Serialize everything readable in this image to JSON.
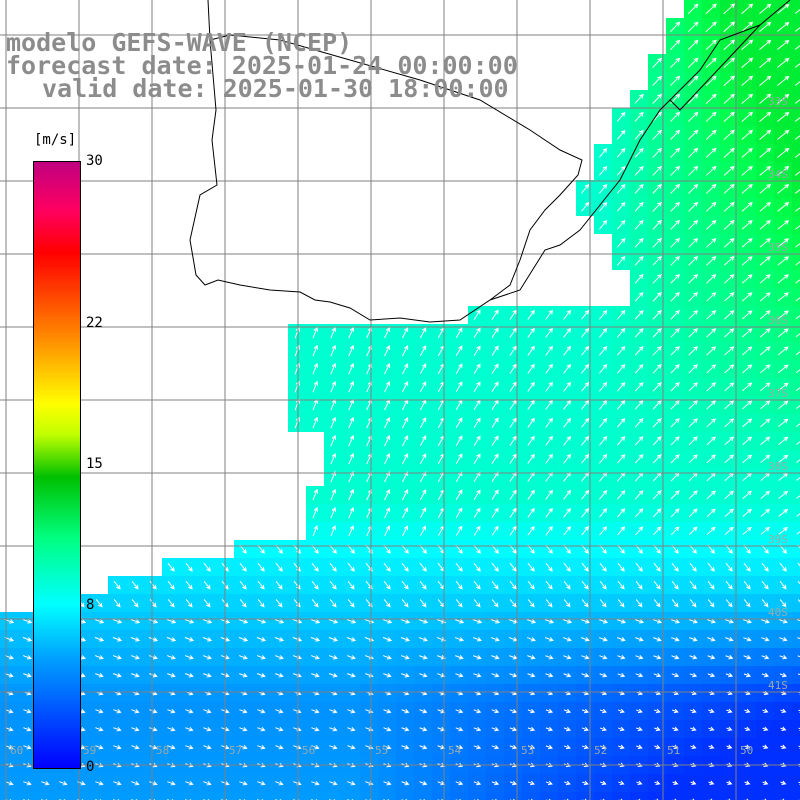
{
  "title": {
    "line1": "modelo GEFS-WAVE (NCEP)",
    "line2": "forecast date: 2025-01-24 00:00:00",
    "line3": "valid date: 2025-01-30 18:00:00"
  },
  "colorbar": {
    "unit": "[m/s]",
    "ticks": [
      "30",
      "22",
      "15",
      "8",
      "0"
    ],
    "tick_values": [
      30,
      22,
      15,
      8,
      0
    ],
    "range": [
      0,
      30
    ],
    "colors": [
      "#0000ff",
      "#00a0ff",
      "#00ffff",
      "#00ff80",
      "#00c000",
      "#ffff00",
      "#ff8000",
      "#ff0000",
      "#c00080"
    ]
  },
  "map": {
    "variable": "wind speed and direction",
    "lat_labels": [
      "33S",
      "34S",
      "35S",
      "36S",
      "37S",
      "38S",
      "39S",
      "40S",
      "41S"
    ],
    "lon_labels": [
      "60",
      "59",
      "58",
      "57",
      "56",
      "55",
      "54",
      "53",
      "52",
      "51",
      "50",
      "49"
    ],
    "colors": {
      "land": "#ffffff",
      "coast": "#000000",
      "grid": "#808080",
      "arrows": "#ffffff"
    }
  }
}
